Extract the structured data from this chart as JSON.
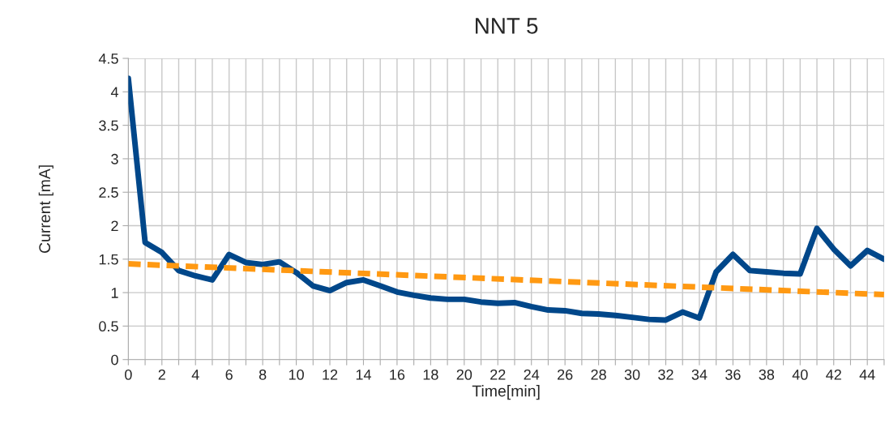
{
  "chart_data": {
    "type": "line",
    "title": "NNT 5",
    "xlabel": "Time[min]",
    "ylabel": "Current [mA]",
    "xlim": [
      0,
      45
    ],
    "ylim": [
      0,
      4.5
    ],
    "xticks": [
      0,
      {
        "value": 1,
        "label": null
      },
      2,
      {
        "value": 3,
        "label": null
      },
      4,
      {
        "value": 5,
        "label": null
      },
      6,
      {
        "value": 7,
        "label": null
      },
      8,
      {
        "value": 9,
        "label": null
      },
      10,
      {
        "value": 11,
        "label": null
      },
      12,
      {
        "value": 13,
        "label": null
      },
      14,
      {
        "value": 15,
        "label": null
      },
      16,
      {
        "value": 17,
        "label": null
      },
      18,
      {
        "value": 19,
        "label": null
      },
      20,
      {
        "value": 21,
        "label": null
      },
      22,
      {
        "value": 23,
        "label": null
      },
      24,
      {
        "value": 25,
        "label": null
      },
      26,
      {
        "value": 27,
        "label": null
      },
      28,
      {
        "value": 29,
        "label": null
      },
      30,
      {
        "value": 31,
        "label": null
      },
      32,
      {
        "value": 33,
        "label": null
      },
      34,
      {
        "value": 35,
        "label": null
      },
      36,
      {
        "value": 37,
        "label": null
      },
      38,
      {
        "value": 39,
        "label": null
      },
      40,
      {
        "value": 41,
        "label": null
      },
      42,
      {
        "value": 43,
        "label": null
      },
      44,
      {
        "value": 45,
        "label": null
      }
    ],
    "yticks": [
      0,
      0.5,
      1,
      1.5,
      2,
      2.5,
      3,
      3.5,
      4,
      4.5
    ],
    "grid": true,
    "legend": false,
    "series": [
      {
        "color": "#00478a",
        "line_style": "solid",
        "x": [
          0,
          1,
          2,
          3,
          4,
          5,
          6,
          7,
          8,
          9,
          10,
          11,
          12,
          13,
          14,
          15,
          16,
          17,
          18,
          19,
          20,
          21,
          22,
          23,
          24,
          25,
          26,
          27,
          28,
          29,
          30,
          31,
          32,
          33,
          34,
          35,
          36,
          37,
          38,
          39,
          40,
          41,
          42,
          43,
          44,
          45
        ],
        "values": [
          4.2,
          1.75,
          1.6,
          1.33,
          1.25,
          1.19,
          1.57,
          1.45,
          1.42,
          1.46,
          1.3,
          1.1,
          1.03,
          1.15,
          1.19,
          1.1,
          1.01,
          0.96,
          0.92,
          0.9,
          0.9,
          0.86,
          0.84,
          0.85,
          0.79,
          0.74,
          0.73,
          0.69,
          0.68,
          0.66,
          0.63,
          0.6,
          0.59,
          0.71,
          0.62,
          1.31,
          1.57,
          1.33,
          1.31,
          1.29,
          1.28,
          1.96,
          1.65,
          1.4,
          1.63,
          1.5
        ]
      },
      {
        "color": "#ff9912",
        "line_style": "dashed",
        "x": [
          0,
          45
        ],
        "values": [
          1.43,
          0.97
        ]
      }
    ]
  }
}
